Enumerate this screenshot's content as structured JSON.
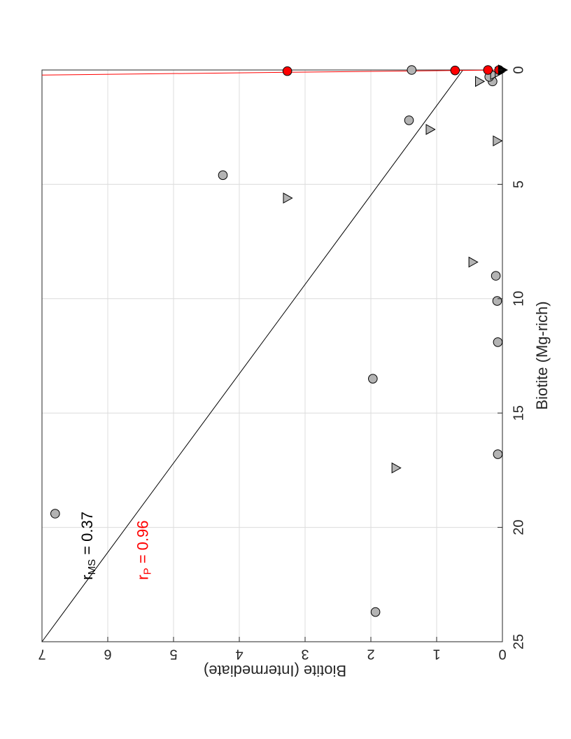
{
  "chart_data": {
    "type": "scatter",
    "title": "",
    "xlabel": "Biotite (Mg-rich)",
    "ylabel": "Biotite (Intermediate)",
    "xlim": [
      0,
      25
    ],
    "ylim": [
      0,
      7
    ],
    "xticks": [
      "0",
      "5",
      "10",
      "15",
      "20",
      "25"
    ],
    "yticks": [
      "0",
      "1",
      "2",
      "3",
      "4",
      "5",
      "6",
      "7"
    ],
    "grid": true,
    "rotation": "page rotated 90 degrees clockwise",
    "colors": {
      "gray": "#b3b3b3",
      "red": "#ff0000",
      "black": "#000000"
    },
    "series": [
      {
        "marker": "circle",
        "color": "#b3b3b3",
        "points": [
          [
            19.4,
            6.8
          ],
          [
            23.7,
            1.93
          ],
          [
            16.8,
            0.07
          ],
          [
            13.5,
            1.97
          ],
          [
            11.9,
            0.07
          ],
          [
            10.1,
            0.08
          ],
          [
            9.0,
            0.1
          ],
          [
            4.6,
            4.25
          ],
          [
            2.2,
            1.42
          ],
          [
            0.5,
            0.15
          ],
          [
            0.3,
            0.2
          ],
          [
            0.0,
            1.38
          ]
        ]
      },
      {
        "marker": "triangle",
        "color": "#b3b3b3",
        "points": [
          [
            17.4,
            1.62
          ],
          [
            8.4,
            0.45
          ],
          [
            5.6,
            3.27
          ],
          [
            3.1,
            0.08
          ],
          [
            2.6,
            1.1
          ],
          [
            0.5,
            0.35
          ],
          [
            0.2,
            0.12
          ],
          [
            0.1,
            0.05
          ]
        ]
      },
      {
        "marker": "circle",
        "color": "#ff0000",
        "points": [
          [
            0.05,
            3.27
          ],
          [
            0.02,
            0.72
          ],
          [
            0.0,
            0.22
          ],
          [
            0.0,
            0.05
          ]
        ]
      },
      {
        "marker": "triangle",
        "color": "#000000",
        "points": [
          [
            0.0,
            0.0
          ]
        ]
      }
    ],
    "fit_lines": [
      {
        "name": "MS",
        "color": "#000000",
        "from": [
          0.0,
          0.6
        ],
        "to": [
          25.0,
          7.0
        ]
      },
      {
        "name": "P",
        "color": "#ff0000",
        "from": [
          0.0,
          0.0
        ],
        "to": [
          0.22,
          7.0
        ]
      }
    ],
    "annotations": [
      {
        "r": "r",
        "sub": "MS",
        "rest": " = 0.37",
        "color": "#000000",
        "x": 22.3,
        "y": 6.3
      },
      {
        "r": "r",
        "sub": "P",
        "rest": " = 0.96",
        "color": "#ff0000",
        "x": 22.3,
        "y": 5.45
      }
    ]
  }
}
